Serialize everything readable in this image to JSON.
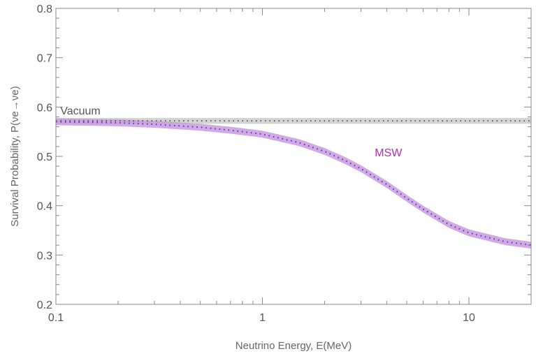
{
  "chart_data": {
    "type": "line",
    "xlabel": "Neutrino Energy, E(MeV)",
    "ylabel": "Survival Probability, P(νe→νe)",
    "xscale": "log",
    "xlim": [
      0.1,
      20
    ],
    "ylim": [
      0.2,
      0.8
    ],
    "x_ticks": [
      0.1,
      1,
      10
    ],
    "x_tick_labels": [
      "0.1",
      "1",
      "10"
    ],
    "y_ticks": [
      0.2,
      0.3,
      0.4,
      0.5,
      0.6,
      0.7,
      0.8
    ],
    "y_tick_labels": [
      "0.2",
      "0.3",
      "0.4",
      "0.5",
      "0.6",
      "0.7",
      "0.8"
    ],
    "grid": false,
    "series": [
      {
        "name": "Vacuum",
        "color": "#555555",
        "band_color": "#cccccc",
        "band_halfwidth": 0.006,
        "x": [
          0.1,
          0.2,
          0.5,
          1,
          2,
          5,
          10,
          20
        ],
        "y": [
          0.572,
          0.572,
          0.572,
          0.572,
          0.572,
          0.572,
          0.572,
          0.572
        ]
      },
      {
        "name": "MSW",
        "color": "#b030b0",
        "line_color": "#3a3aa0",
        "band_color": "#c89ae0",
        "band_halfwidth": 0.007,
        "x": [
          0.1,
          0.15,
          0.2,
          0.3,
          0.5,
          0.7,
          1,
          1.5,
          2,
          2.5,
          3,
          4,
          5,
          6,
          8,
          10,
          15,
          20
        ],
        "y": [
          0.57,
          0.569,
          0.568,
          0.565,
          0.559,
          0.553,
          0.545,
          0.528,
          0.51,
          0.492,
          0.475,
          0.443,
          0.415,
          0.393,
          0.362,
          0.345,
          0.327,
          0.32
        ]
      }
    ],
    "annotations": [
      {
        "text": "Vacuum",
        "x": 0.105,
        "y": 0.585
      },
      {
        "text": "MSW",
        "x": 3.5,
        "y": 0.5
      }
    ]
  }
}
